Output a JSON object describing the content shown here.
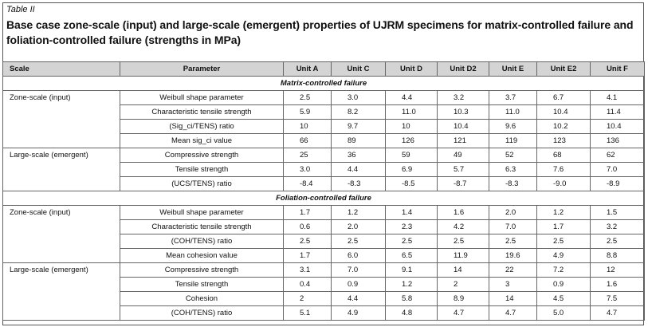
{
  "table_label": "Table II",
  "title": "Base case zone-scale (input) and large-scale (emergent) properties of UJRM specimens for matrix-controlled failure and foliation-controlled failure (strengths in MPa)",
  "table": {
    "columns": [
      "Scale",
      "Parameter",
      "Unit A",
      "Unit C",
      "Unit D",
      "Unit D2",
      "Unit E",
      "Unit E2",
      "Unit F"
    ],
    "sections": [
      {
        "title": "Matrix-controlled failure",
        "groups": [
          {
            "scale": "Zone-scale (input)",
            "rows": [
              {
                "parameter": "Weibull shape parameter",
                "values": [
                  "2.5",
                  "3.0",
                  "4.4",
                  "3.2",
                  "3.7",
                  "6.7",
                  "4.1"
                ]
              },
              {
                "parameter": "Characteristic tensile strength",
                "values": [
                  "5.9",
                  "8.2",
                  "11.0",
                  "10.3",
                  "11.0",
                  "10.4",
                  "11.4"
                ]
              },
              {
                "parameter": "(Sig_ci/TENS) ratio",
                "values": [
                  "10",
                  "9.7",
                  "10",
                  "10.4",
                  "9.6",
                  "10.2",
                  "10.4"
                ]
              },
              {
                "parameter": "Mean sig_ci value",
                "values": [
                  "66",
                  "89",
                  "126",
                  "121",
                  "119",
                  "123",
                  "136"
                ]
              }
            ]
          },
          {
            "scale": "Large-scale (emergent)",
            "rows": [
              {
                "parameter": "Compressive strength",
                "values": [
                  "25",
                  "36",
                  "59",
                  "49",
                  "52",
                  "68",
                  "62"
                ]
              },
              {
                "parameter": "Tensile strength",
                "values": [
                  "3.0",
                  "4.4",
                  "6.9",
                  "5.7",
                  "6.3",
                  "7.6",
                  "7.0"
                ]
              },
              {
                "parameter": "(UCS/TENS) ratio",
                "values": [
                  "-8.4",
                  "-8.3",
                  "-8.5",
                  "-8.7",
                  "-8.3",
                  "-9.0",
                  "-8.9"
                ]
              }
            ]
          }
        ]
      },
      {
        "title": "Foliation-controlled failure",
        "groups": [
          {
            "scale": "Zone-scale (input)",
            "rows": [
              {
                "parameter": "Weibull shape parameter",
                "values": [
                  "1.7",
                  "1.2",
                  "1.4",
                  "1.6",
                  "2.0",
                  "1.2",
                  "1.5"
                ]
              },
              {
                "parameter": "Characteristic tensile strength",
                "values": [
                  "0.6",
                  "2.0",
                  "2.3",
                  "4.2",
                  "7.0",
                  "1.7",
                  "3.2"
                ]
              },
              {
                "parameter": "(COH/TENS) ratio",
                "values": [
                  "2.5",
                  "2.5",
                  "2.5",
                  "2.5",
                  "2.5",
                  "2.5",
                  "2.5"
                ]
              },
              {
                "parameter": "Mean cohesion value",
                "values": [
                  "1.7",
                  "6.0",
                  "6.5",
                  "11.9",
                  "19.6",
                  "4.9",
                  "8.8"
                ]
              }
            ]
          },
          {
            "scale": "Large-scale (emergent)",
            "rows": [
              {
                "parameter": "Compressive strength",
                "values": [
                  "3.1",
                  "7.0",
                  "9.1",
                  "14",
                  "22",
                  "7.2",
                  "12"
                ]
              },
              {
                "parameter": "Tensile strength",
                "values": [
                  "0.4",
                  "0.9",
                  "1.2",
                  "2",
                  "3",
                  "0.9",
                  "1.6"
                ]
              },
              {
                "parameter": "Cohesion",
                "values": [
                  "2",
                  "4.4",
                  "5.8",
                  "8.9",
                  "14",
                  "4.5",
                  "7.5"
                ]
              },
              {
                "parameter": "(COH/TENS) ratio",
                "values": [
                  "5.1",
                  "4.9",
                  "4.8",
                  "4.7",
                  "4.7",
                  "5.0",
                  "4.7"
                ]
              }
            ]
          }
        ]
      }
    ]
  }
}
